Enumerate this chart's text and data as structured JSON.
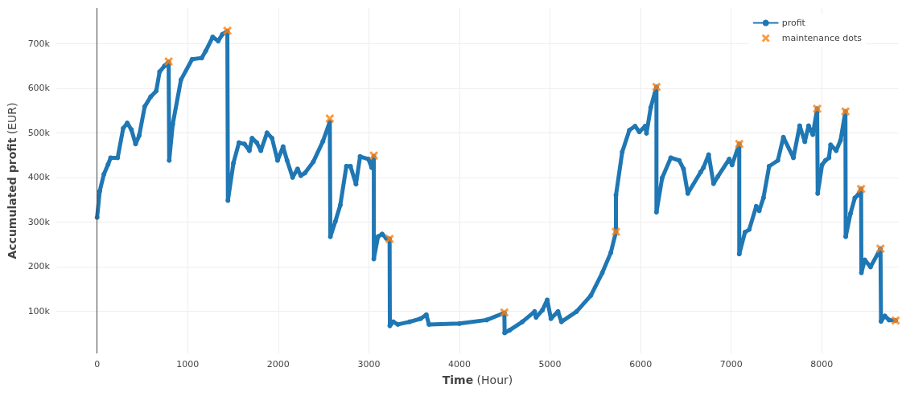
{
  "chart_data": {
    "type": "line",
    "xlabel": "Time (Hour)",
    "ylabel": "Accumulated profit (EUR)",
    "xlim": [
      -450,
      8850
    ],
    "xticks": [
      0,
      1000,
      2000,
      3000,
      4000,
      5000,
      6000,
      7000,
      8000
    ],
    "ylim": [
      5000,
      780000
    ],
    "yticks": [
      {
        "value": 100000,
        "label": "100k"
      },
      {
        "value": 200000,
        "label": "200k"
      },
      {
        "value": 300000,
        "label": "300k"
      },
      {
        "value": 400000,
        "label": "400k"
      },
      {
        "value": 500000,
        "label": "500k"
      },
      {
        "value": 600000,
        "label": "600k"
      },
      {
        "value": 700000,
        "label": "700k"
      }
    ],
    "grid": true,
    "legend": "top right",
    "ref_lines": [
      {
        "axis": "x",
        "value": 0,
        "label": null,
        "color": "#444444"
      }
    ],
    "series": [
      {
        "name": "profit",
        "marker": "circle",
        "color": "#1f77b4",
        "x": [
          0,
          29,
          75,
          121,
          150,
          227,
          288,
          333,
          379,
          425,
          465,
          526,
          592,
          653,
          690,
          744,
          790,
          796,
          835,
          926,
          1049,
          1155,
          1200,
          1276,
          1337,
          1383,
          1438,
          1444,
          1505,
          1566,
          1627,
          1681,
          1711,
          1763,
          1808,
          1876,
          1931,
          1992,
          2053,
          2097,
          2158,
          2213,
          2249,
          2295,
          2387,
          2493,
          2569,
          2575,
          2630,
          2685,
          2752,
          2797,
          2858,
          2903,
          2995,
          3031,
          3055,
          3055,
          3101,
          3147,
          3193,
          3229,
          3232,
          3269,
          3320,
          3451,
          3572,
          3634,
          3664,
          4000,
          4300,
          4496,
          4499,
          4553,
          4695,
          4830,
          4846,
          4916,
          4969,
          5010,
          5088,
          5126,
          5293,
          5451,
          5577,
          5671,
          5728,
          5728,
          5797,
          5876,
          5939,
          5986,
          6050,
          6065,
          6112,
          6175,
          6175,
          6238,
          6333,
          6427,
          6474,
          6521,
          6663,
          6694,
          6751,
          6805,
          6853,
          6978,
          7010,
          7089,
          7089,
          7152,
          7199,
          7276,
          7309,
          7356,
          7419,
          7515,
          7576,
          7687,
          7756,
          7813,
          7854,
          7901,
          7949,
          7955,
          8003,
          8040,
          8079,
          8097,
          8159,
          8207,
          8261,
          8264,
          8317,
          8365,
          8397,
          8434,
          8437,
          8475,
          8538,
          8648,
          8654,
          8696,
          8743,
          8815
        ],
        "values": [
          310000,
          369000,
          407000,
          429000,
          444000,
          444000,
          510000,
          522000,
          507000,
          475000,
          494000,
          559000,
          581000,
          594000,
          637000,
          650000,
          659000,
          438000,
          519000,
          619000,
          665000,
          668000,
          684000,
          715000,
          706000,
          721000,
          728000,
          348000,
          432000,
          478000,
          475000,
          460000,
          488000,
          478000,
          460000,
          500000,
          488000,
          438000,
          469000,
          438000,
          400000,
          419000,
          404000,
          410000,
          435000,
          481000,
          525000,
          267000,
          301000,
          338000,
          425000,
          425000,
          385000,
          447000,
          441000,
          422000,
          447000,
          217000,
          267000,
          273000,
          263000,
          262000,
          67000,
          76000,
          70000,
          76000,
          83000,
          92000,
          70000,
          72000,
          80000,
          96000,
          51000,
          57000,
          76000,
          99000,
          86000,
          102000,
          125000,
          83000,
          99000,
          76000,
          99000,
          135000,
          186000,
          231000,
          278000,
          360000,
          457000,
          506000,
          515000,
          502000,
          515000,
          499000,
          557000,
          603000,
          322000,
          399000,
          444000,
          438000,
          419000,
          364000,
          412000,
          422000,
          451000,
          386000,
          402000,
          441000,
          428000,
          475000,
          228000,
          277000,
          283000,
          335000,
          325000,
          354000,
          425000,
          438000,
          490000,
          444000,
          516000,
          480000,
          516000,
          496000,
          554000,
          364000,
          428000,
          438000,
          444000,
          473000,
          460000,
          483000,
          548000,
          267000,
          319000,
          354000,
          360000,
          374000,
          186000,
          215000,
          199000,
          240000,
          77000,
          89000,
          80000,
          79000
        ]
      },
      {
        "name": "maintenance dots",
        "type": "scatter",
        "marker": "cross",
        "color": "#ff7f0e",
        "x": [
          790,
          1438,
          2569,
          3055,
          3229,
          4496,
          5728,
          6175,
          7089,
          7949,
          8261,
          8434,
          8648,
          8815
        ],
        "values": [
          660000,
          729000,
          532000,
          449000,
          262000,
          97000,
          278000,
          603000,
          475000,
          554000,
          548000,
          374000,
          240000,
          79000
        ]
      }
    ]
  }
}
